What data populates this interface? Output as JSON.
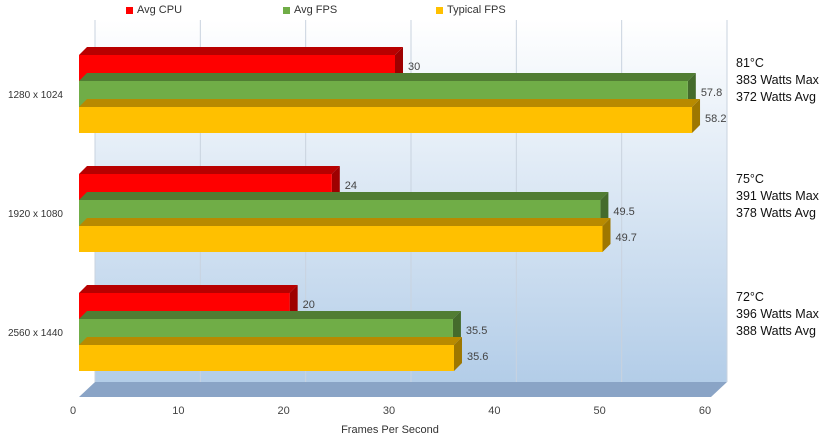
{
  "chart_data": {
    "type": "bar",
    "orientation": "horizontal",
    "categories": [
      "1280 x 1024",
      "1920 x 1080",
      "2560 x 1440"
    ],
    "series": [
      {
        "name": "Avg CPU",
        "color": "#ff0000",
        "values": [
          30,
          24,
          20
        ]
      },
      {
        "name": "Avg FPS",
        "color": "#70ad47",
        "values": [
          57.8,
          49.5,
          35.5
        ]
      },
      {
        "name": "Typical FPS",
        "color": "#ffc000",
        "values": [
          58.2,
          49.7,
          35.6
        ]
      }
    ],
    "xlabel": "Frames Per Second",
    "xlim": [
      0,
      60
    ],
    "xticks": [
      "0",
      "10",
      "20",
      "30",
      "40",
      "50",
      "60"
    ],
    "grid": true,
    "legend_position": "top",
    "annotations": [
      {
        "lines": [
          "81°C",
          "383 Watts Max",
          "372 Watts Avg"
        ]
      },
      {
        "lines": [
          "75°C",
          "391 Watts Max",
          "378 Watts Avg"
        ]
      },
      {
        "lines": [
          "72°C",
          "396 Watts Max",
          "388 Watts Avg"
        ]
      }
    ]
  }
}
